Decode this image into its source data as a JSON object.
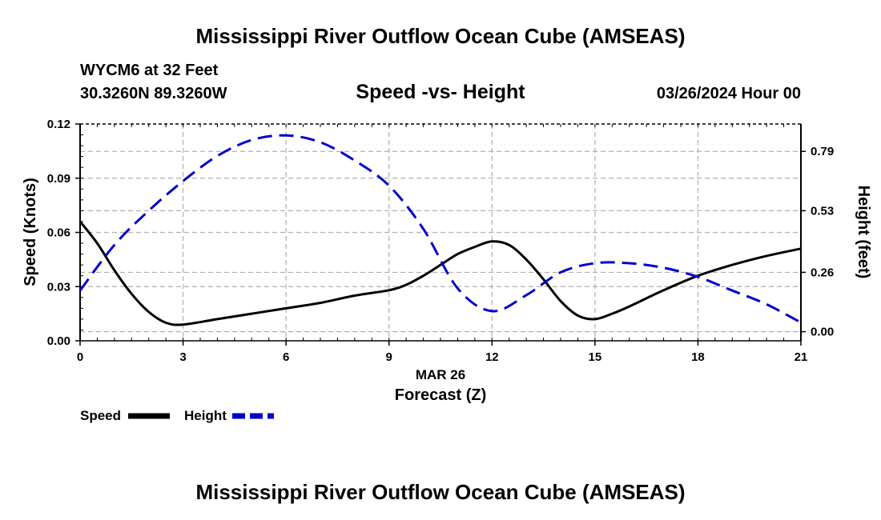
{
  "chart_data": {
    "type": "line",
    "title": "Mississippi River Outflow Ocean Cube (AMSEAS)",
    "station": "WYCM6 at 32 Feet",
    "location": "30.3260N  89.3260W",
    "subtitle": "Speed -vs- Height",
    "datetime": "03/26/2024 Hour 00",
    "xlabel": "Forecast (Z)",
    "date_label": "MAR 26",
    "ylabel": "Speed (Knots)",
    "y2label": "Height (feet)",
    "xlim": [
      0,
      21
    ],
    "ylim": [
      0,
      0.12
    ],
    "y2lim": [
      -0.04,
      0.91
    ],
    "x_ticks": [
      0,
      3,
      6,
      9,
      12,
      15,
      18,
      21
    ],
    "x_tick_labels": [
      "0",
      "3",
      "6",
      "9",
      "12",
      "15",
      "18",
      "21"
    ],
    "y_ticks": [
      0,
      0.03,
      0.06,
      0.09,
      0.12
    ],
    "y_tick_labels": [
      "0.00",
      "0.03",
      "0.06",
      "0.09",
      "0.12"
    ],
    "y2_ticks": [
      0.0,
      0.26,
      0.53,
      0.79
    ],
    "y2_tick_labels": [
      "0.00",
      "0.26",
      "0.53",
      "0.79"
    ],
    "grid": true,
    "series": [
      {
        "name": "Speed",
        "axis": "left",
        "color": "#000000",
        "x": [
          0,
          0.5,
          1,
          1.5,
          2,
          2.5,
          3,
          4,
          5,
          6,
          7,
          8,
          9,
          9.5,
          10,
          10.5,
          11,
          11.5,
          12,
          12.5,
          13,
          13.5,
          14,
          14.5,
          15,
          15.5,
          16,
          17,
          18,
          19,
          20,
          21
        ],
        "values": [
          0.066,
          0.054,
          0.039,
          0.026,
          0.016,
          0.01,
          0.009,
          0.012,
          0.015,
          0.018,
          0.021,
          0.025,
          0.028,
          0.031,
          0.036,
          0.042,
          0.048,
          0.052,
          0.055,
          0.053,
          0.045,
          0.034,
          0.022,
          0.014,
          0.012,
          0.015,
          0.019,
          0.028,
          0.036,
          0.042,
          0.047,
          0.051
        ]
      },
      {
        "name": "Height",
        "axis": "right",
        "color": "#0000cc",
        "x": [
          0,
          1,
          2,
          3,
          4,
          5,
          6,
          7,
          8,
          9,
          10,
          11,
          12,
          13,
          14,
          15,
          16,
          17,
          18,
          19,
          20,
          21
        ],
        "values": [
          0.18,
          0.38,
          0.53,
          0.66,
          0.77,
          0.84,
          0.86,
          0.83,
          0.75,
          0.64,
          0.45,
          0.19,
          0.09,
          0.16,
          0.26,
          0.3,
          0.3,
          0.28,
          0.24,
          0.18,
          0.12,
          0.04
        ]
      }
    ],
    "legend": [
      {
        "label": "Speed",
        "color": "#000000",
        "dashed": false
      },
      {
        "label": "Height",
        "color": "#0000cc",
        "dashed": true
      }
    ]
  },
  "footer_title": "Mississippi River Outflow Ocean Cube (AMSEAS)"
}
